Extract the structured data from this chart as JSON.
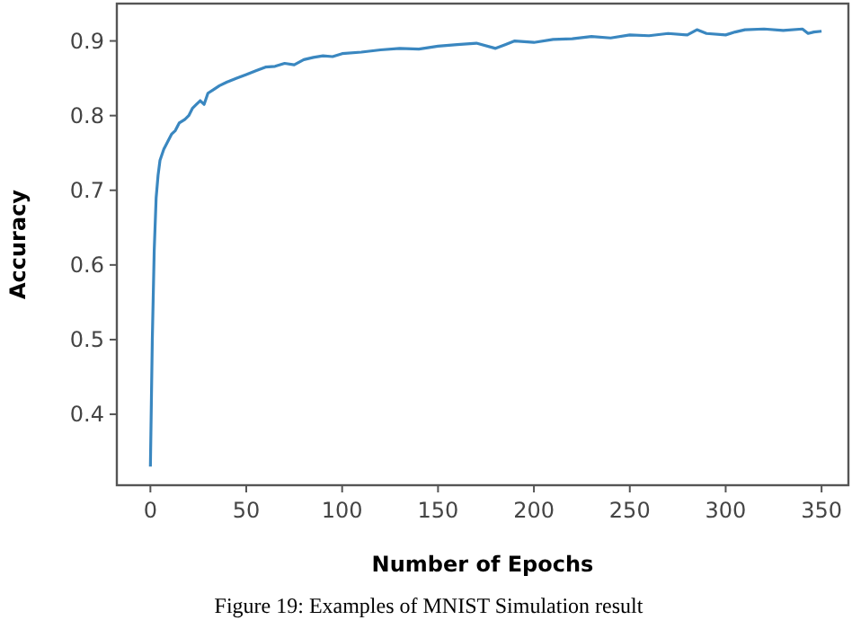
{
  "chart_data": {
    "type": "line",
    "xlabel": "Number of Epochs",
    "ylabel": "Accuracy",
    "annotations": [
      "Figure 19: Examples of MNIST Simulation result"
    ],
    "xlim": [
      -17.5,
      364
    ],
    "ylim": [
      0.305,
      0.95
    ],
    "xticks": [
      0,
      50,
      100,
      150,
      200,
      250,
      300,
      350
    ],
    "yticks": [
      0.4,
      0.5,
      0.6,
      0.7,
      0.8,
      0.9
    ],
    "grid": false,
    "marker": "none",
    "line_style": "solid",
    "series": [
      {
        "color": "#3a87c0",
        "x": [
          0,
          1,
          2,
          3,
          4,
          5,
          7,
          9,
          11,
          13,
          15,
          18,
          20,
          22,
          24,
          26,
          28,
          30,
          33,
          36,
          40,
          45,
          50,
          55,
          60,
          65,
          70,
          75,
          80,
          85,
          90,
          95,
          100,
          110,
          120,
          130,
          140,
          150,
          160,
          170,
          180,
          185,
          190,
          200,
          210,
          220,
          230,
          240,
          250,
          260,
          270,
          280,
          285,
          290,
          300,
          305,
          310,
          320,
          330,
          340,
          343,
          346,
          350
        ],
        "values": [
          0.33,
          0.5,
          0.62,
          0.69,
          0.72,
          0.74,
          0.755,
          0.765,
          0.775,
          0.78,
          0.79,
          0.795,
          0.8,
          0.81,
          0.815,
          0.82,
          0.815,
          0.83,
          0.835,
          0.84,
          0.845,
          0.85,
          0.855,
          0.86,
          0.865,
          0.866,
          0.87,
          0.868,
          0.875,
          0.878,
          0.88,
          0.879,
          0.883,
          0.885,
          0.888,
          0.89,
          0.889,
          0.893,
          0.895,
          0.897,
          0.89,
          0.895,
          0.9,
          0.898,
          0.902,
          0.903,
          0.906,
          0.904,
          0.908,
          0.907,
          0.91,
          0.908,
          0.915,
          0.91,
          0.908,
          0.912,
          0.915,
          0.916,
          0.914,
          0.916,
          0.91,
          0.912,
          0.913
        ]
      }
    ]
  }
}
